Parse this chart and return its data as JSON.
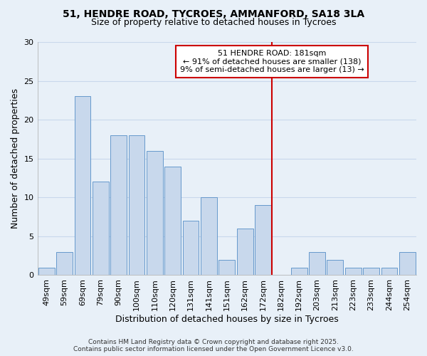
{
  "title": "51, HENDRE ROAD, TYCROES, AMMANFORD, SA18 3LA",
  "subtitle": "Size of property relative to detached houses in Tycroes",
  "xlabel": "Distribution of detached houses by size in Tycroes",
  "ylabel": "Number of detached properties",
  "bar_labels": [
    "49sqm",
    "59sqm",
    "69sqm",
    "79sqm",
    "90sqm",
    "100sqm",
    "110sqm",
    "120sqm",
    "131sqm",
    "141sqm",
    "151sqm",
    "162sqm",
    "172sqm",
    "182sqm",
    "192sqm",
    "203sqm",
    "213sqm",
    "223sqm",
    "233sqm",
    "244sqm",
    "254sqm"
  ],
  "bar_values": [
    1,
    3,
    23,
    12,
    18,
    18,
    16,
    14,
    7,
    10,
    2,
    6,
    9,
    0,
    1,
    3,
    2,
    1,
    1,
    1,
    3
  ],
  "bar_color": "#c8d8ec",
  "bar_edgecolor": "#6699cc",
  "grid_color": "#c8d8ec",
  "background_color": "#e8f0f8",
  "annotation_text_line1": "51 HENDRE ROAD: 181sqm",
  "annotation_text_line2": "← 91% of detached houses are smaller (138)",
  "annotation_text_line3": "9% of semi-detached houses are larger (13) →",
  "vline_color": "#cc0000",
  "annotation_box_edgecolor": "#cc0000",
  "ylim": [
    0,
    30
  ],
  "yticks": [
    0,
    5,
    10,
    15,
    20,
    25,
    30
  ],
  "footer_line1": "Contains HM Land Registry data © Crown copyright and database right 2025.",
  "footer_line2": "Contains public sector information licensed under the Open Government Licence v3.0.",
  "title_fontsize": 10,
  "subtitle_fontsize": 9,
  "axis_label_fontsize": 9,
  "tick_fontsize": 8,
  "annotation_fontsize": 8,
  "footer_fontsize": 6.5,
  "vline_index": 13
}
